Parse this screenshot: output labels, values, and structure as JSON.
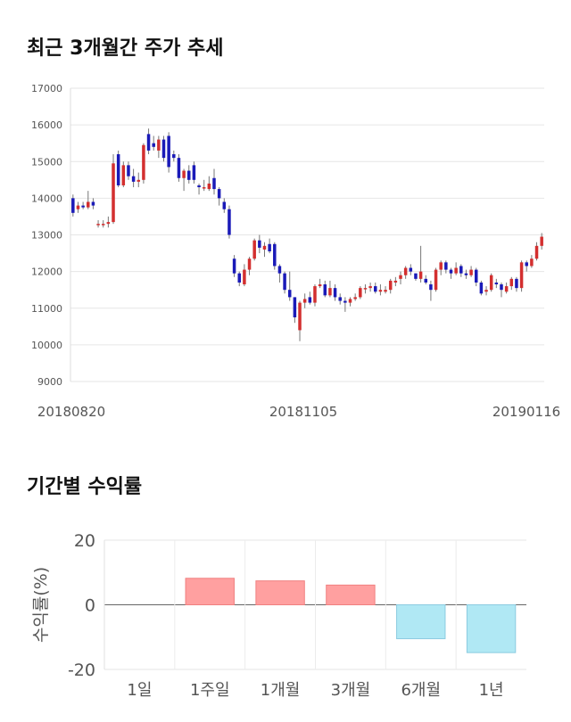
{
  "section1_title": "최근 3개월간 주가 추세",
  "section2_title": "기간별 수익률",
  "chart_data": [
    {
      "type": "candlestick",
      "title": "최근 3개월간 주가 추세",
      "ylim": [
        9000,
        17000
      ],
      "yticks": [
        "17000",
        "16000",
        "15000",
        "14000",
        "13000",
        "12000",
        "11000",
        "10000",
        "9000"
      ],
      "xticks": [
        "20180820",
        "20181105",
        "20190116"
      ],
      "grid": true,
      "colors": {
        "up": "#d32f2f",
        "down": "#1a1ab8"
      },
      "candles": [
        [
          14000,
          13600,
          14100,
          13500
        ],
        [
          13700,
          13800,
          13900,
          13600
        ],
        [
          13800,
          13750,
          13900,
          13700
        ],
        [
          13750,
          13900,
          14200,
          13700
        ],
        [
          13900,
          13800,
          14000,
          13700
        ],
        [
          13300,
          13300,
          13400,
          13200
        ],
        [
          13300,
          13300,
          13400,
          13200
        ],
        [
          13300,
          13350,
          13500,
          13200
        ],
        [
          13350,
          14950,
          15200,
          13300
        ],
        [
          15200,
          14350,
          15300,
          14300
        ],
        [
          14350,
          14900,
          15000,
          14300
        ],
        [
          14900,
          14600,
          15000,
          14500
        ],
        [
          14600,
          14450,
          14800,
          14300
        ],
        [
          14450,
          14500,
          14700,
          14300
        ],
        [
          14500,
          15450,
          15500,
          14400
        ],
        [
          15750,
          15300,
          15900,
          15200
        ],
        [
          15500,
          15400,
          15700,
          15300
        ],
        [
          15300,
          15600,
          15700,
          15100
        ],
        [
          15600,
          15100,
          15700,
          15000
        ],
        [
          15700,
          14850,
          15800,
          14700
        ],
        [
          15200,
          15100,
          15300,
          15000
        ],
        [
          15100,
          14550,
          15200,
          14450
        ],
        [
          14550,
          14750,
          14800,
          14200
        ],
        [
          14750,
          14500,
          14900,
          14400
        ],
        [
          14900,
          14500,
          15000,
          14400
        ],
        [
          14350,
          14300,
          14400,
          14100
        ],
        [
          14300,
          14300,
          14500,
          14200
        ],
        [
          14250,
          14400,
          14600,
          14200
        ],
        [
          14550,
          14250,
          14800,
          14100
        ],
        [
          14250,
          14000,
          14300,
          13800
        ],
        [
          13900,
          13700,
          14000,
          13600
        ],
        [
          13700,
          13000,
          13800,
          12900
        ],
        [
          12350,
          11950,
          12450,
          11850
        ],
        [
          11950,
          11700,
          12000,
          11600
        ],
        [
          11650,
          12050,
          12200,
          11600
        ],
        [
          12050,
          12350,
          12400,
          11900
        ],
        [
          12350,
          12850,
          12900,
          12300
        ],
        [
          12850,
          12650,
          13000,
          12500
        ],
        [
          12600,
          12700,
          12800,
          12400
        ],
        [
          12750,
          12550,
          12900,
          12500
        ],
        [
          12750,
          12150,
          12800,
          12050
        ],
        [
          12150,
          11950,
          12200,
          11700
        ],
        [
          11950,
          11500,
          12000,
          11400
        ],
        [
          11500,
          11300,
          12000,
          11200
        ],
        [
          11300,
          10750,
          11300,
          10600
        ],
        [
          10400,
          11150,
          11200,
          10100
        ],
        [
          11150,
          11250,
          11400,
          11000
        ],
        [
          11300,
          11150,
          11450,
          11100
        ],
        [
          11150,
          11600,
          11650,
          11050
        ],
        [
          11600,
          11650,
          11800,
          11550
        ],
        [
          11650,
          11350,
          11750,
          11300
        ],
        [
          11350,
          11550,
          11750,
          11300
        ],
        [
          11550,
          11300,
          11650,
          11200
        ],
        [
          11300,
          11200,
          11400,
          11100
        ],
        [
          11200,
          11150,
          11300,
          10900
        ],
        [
          11150,
          11250,
          11300,
          11050
        ],
        [
          11250,
          11300,
          11400,
          11200
        ],
        [
          11300,
          11550,
          11600,
          11250
        ],
        [
          11550,
          11550,
          11650,
          11400
        ],
        [
          11550,
          11600,
          11700,
          11450
        ],
        [
          11600,
          11450,
          11700,
          11400
        ],
        [
          11450,
          11500,
          11650,
          11350
        ],
        [
          11450,
          11500,
          11600,
          11400
        ],
        [
          11500,
          11750,
          11800,
          11400
        ],
        [
          11700,
          11750,
          11850,
          11600
        ],
        [
          11800,
          11900,
          12000,
          11650
        ],
        [
          11900,
          12100,
          12150,
          11800
        ],
        [
          12100,
          12000,
          12200,
          11900
        ],
        [
          11950,
          11800,
          11950,
          11750
        ],
        [
          11800,
          12000,
          12700,
          11700
        ],
        [
          11800,
          11700,
          11900,
          11650
        ],
        [
          11650,
          11500,
          11750,
          11200
        ],
        [
          11500,
          12050,
          12100,
          11450
        ],
        [
          12050,
          12250,
          12300,
          11900
        ],
        [
          12250,
          12050,
          12300,
          11950
        ],
        [
          12050,
          11950,
          12100,
          11800
        ],
        [
          11950,
          12100,
          12250,
          11900
        ],
        [
          12150,
          11950,
          12200,
          11850
        ],
        [
          11950,
          11900,
          12050,
          11800
        ],
        [
          11900,
          12050,
          12150,
          11850
        ],
        [
          12050,
          11700,
          12100,
          11600
        ],
        [
          11700,
          11400,
          11750,
          11350
        ],
        [
          11450,
          11500,
          11600,
          11350
        ],
        [
          11500,
          11900,
          11950,
          11450
        ],
        [
          11700,
          11650,
          11800,
          11550
        ],
        [
          11650,
          11500,
          11700,
          11300
        ],
        [
          11450,
          11600,
          11700,
          11400
        ],
        [
          11600,
          11800,
          11850,
          11500
        ],
        [
          11800,
          11550,
          11850,
          11450
        ],
        [
          11550,
          12250,
          12300,
          11450
        ],
        [
          12250,
          12150,
          12300,
          12000
        ],
        [
          12150,
          12350,
          12450,
          12100
        ],
        [
          12350,
          12700,
          12800,
          12300
        ],
        [
          12700,
          12950,
          13050,
          12600
        ]
      ]
    },
    {
      "type": "bar",
      "title": "기간별 수익률",
      "ylabel": "수익률(%)",
      "ylim": [
        -20,
        20
      ],
      "yticks": [
        "20",
        "0",
        "-20"
      ],
      "categories": [
        "1일",
        "1주일",
        "1개월",
        "3개월",
        "6개월",
        "1년"
      ],
      "values": [
        0,
        8.2,
        7.4,
        6.1,
        -10.5,
        -14.8
      ],
      "colors": {
        "positive": "#ffa0a0",
        "positive_edge": "#f08080",
        "negative": "#b0e8f4",
        "negative_edge": "#8ccbe0"
      }
    }
  ]
}
